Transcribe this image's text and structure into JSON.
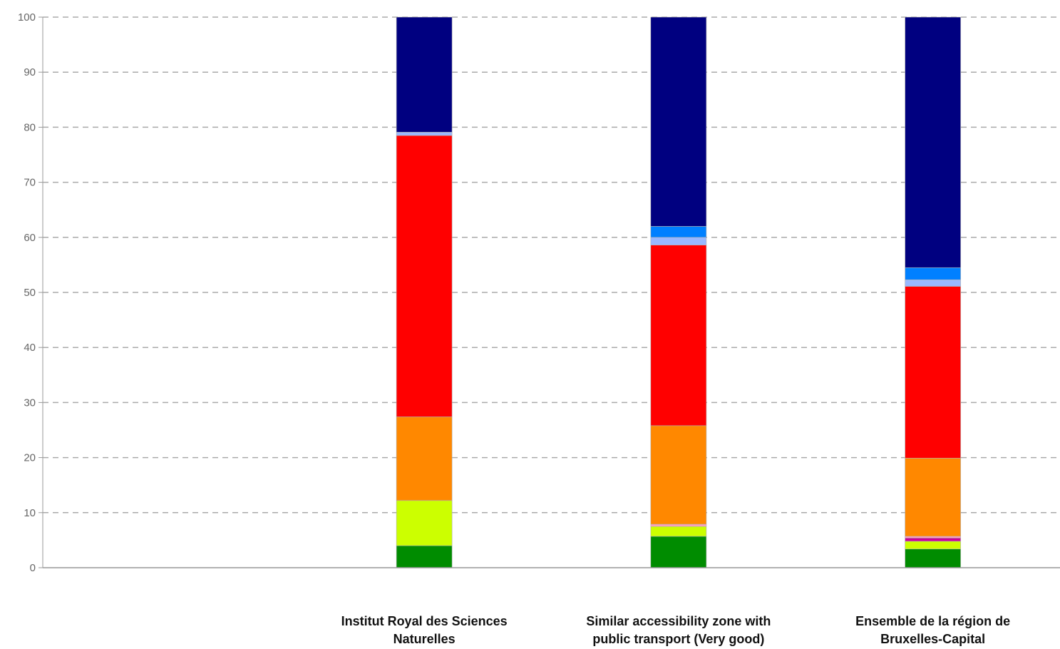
{
  "chart_data": {
    "type": "bar",
    "stacked": true,
    "title": "",
    "xlabel": "",
    "ylabel": "",
    "ylim": [
      0,
      100
    ],
    "yticks": [
      0,
      10,
      20,
      30,
      40,
      50,
      60,
      70,
      80,
      90,
      100
    ],
    "grid": true,
    "categories": [
      "",
      [
        "Institut Royal des Sciences",
        "Naturelles"
      ],
      [
        "Similar accessibility zone with",
        "public transport (Very good)"
      ],
      [
        "Ensemble de la région de",
        "Bruxelles-Capital"
      ]
    ],
    "series": [
      {
        "color": "#008c00",
        "values": [
          0,
          4.0,
          5.7,
          3.4
        ]
      },
      {
        "color": "#ccff00",
        "values": [
          0,
          8.2,
          1.8,
          1.4
        ]
      },
      {
        "color": "#cc0099",
        "values": [
          0,
          0.0,
          0.0,
          0.6
        ]
      },
      {
        "color": "#ff9fbf",
        "values": [
          0,
          0.0,
          0.4,
          0.3
        ]
      },
      {
        "color": "#ff8800",
        "values": [
          0,
          15.2,
          17.9,
          14.2
        ]
      },
      {
        "color": "#ff0000",
        "values": [
          0,
          51.1,
          32.8,
          31.2
        ]
      },
      {
        "color": "#99b8ff",
        "values": [
          0,
          0.6,
          1.4,
          1.2
        ]
      },
      {
        "color": "#0080ff",
        "values": [
          0,
          0.0,
          2.0,
          2.2
        ]
      },
      {
        "color": "#000080",
        "values": [
          0,
          20.9,
          38.0,
          45.5
        ]
      }
    ]
  }
}
